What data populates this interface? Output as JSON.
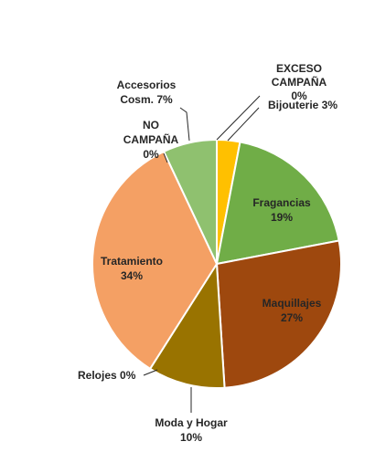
{
  "chart_data": {
    "type": "pie",
    "slices": [
      {
        "label": "EXCESO CAMPAÑA",
        "value": 0,
        "value_label": "0%",
        "color": "#1F4E79"
      },
      {
        "label": "Bijouterie",
        "value": 3,
        "value_label": "3%",
        "color": "#FFC000"
      },
      {
        "label": "Fragancias",
        "value": 19,
        "value_label": "19%",
        "color": "#70AD47"
      },
      {
        "label": "Maquillajes",
        "value": 27,
        "value_label": "27%",
        "color": "#9E480E"
      },
      {
        "label": "Moda y Hogar",
        "value": 10,
        "value_label": "10%",
        "color": "#997300"
      },
      {
        "label": "Relojes",
        "value": 0,
        "value_label": "0%",
        "color": "#5B9BD5"
      },
      {
        "label": "Tratamiento",
        "value": 34,
        "value_label": "34%",
        "color": "#F4A064"
      },
      {
        "label": "NO CAMPAÑA",
        "value": 0,
        "value_label": "0%",
        "color": "#A5A5A5"
      },
      {
        "label": "Accesorios Cosm.",
        "value": 7,
        "value_label": "7%",
        "color": "#8FC16F"
      }
    ],
    "title": "",
    "legend": "none",
    "data_labels": [
      {
        "lines": [
          "EXCESO",
          "CAMPAÑA",
          "0%"
        ]
      },
      {
        "lines": [
          "Bijouterie 3%"
        ]
      },
      {
        "lines": [
          "Fragancias",
          "19%"
        ]
      },
      {
        "lines": [
          "Maquillajes",
          "27%"
        ]
      },
      {
        "lines": [
          "Moda y Hogar",
          "10%"
        ]
      },
      {
        "lines": [
          "Relojes 0%"
        ]
      },
      {
        "lines": [
          "Tratamiento",
          "34%"
        ]
      },
      {
        "lines": [
          "NO",
          "CAMPAÑA",
          "0%"
        ]
      },
      {
        "lines": [
          "Accesorios",
          "Cosm. 7%"
        ]
      }
    ]
  }
}
